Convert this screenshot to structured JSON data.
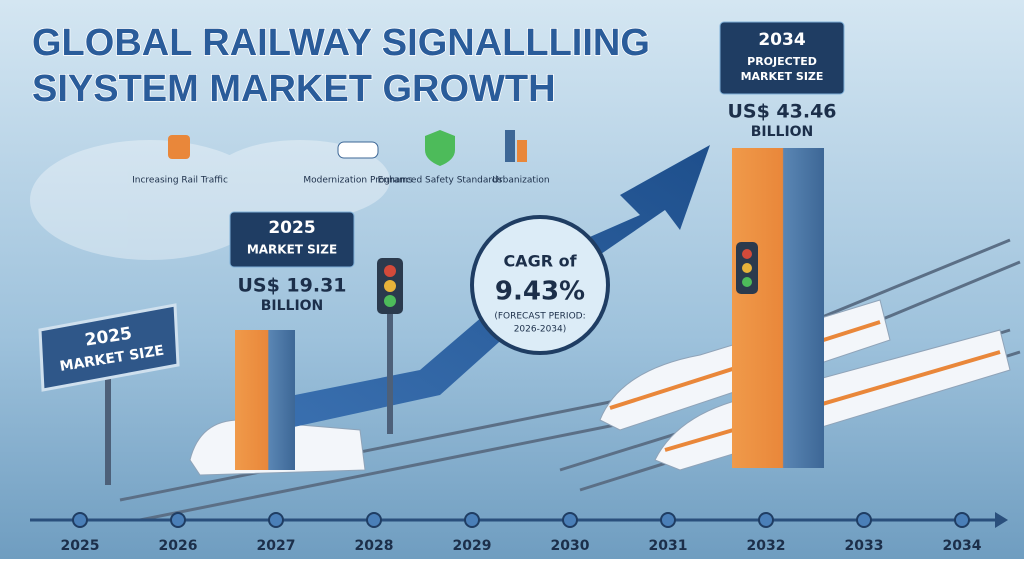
{
  "title": {
    "lines": [
      "GLOBAL RAILWAY SIGNALLLIING",
      "SIYSTEM MARKET GROWTH"
    ]
  },
  "drivers": [
    "Increasing Rail Traffic",
    "Modernization Programs",
    "Enhanced Safety Standards",
    "Urbanization"
  ],
  "sign": {
    "lines": [
      "2025",
      "MARKET SIZE"
    ]
  },
  "start": {
    "year": "2025",
    "label": "MARKET SIZE",
    "value": "US$ 19.31",
    "unit": "BILLION"
  },
  "end": {
    "year": "2034",
    "label_lines": [
      "PROJECTED",
      "MARKET SIZE"
    ],
    "value": "US$ 43.46",
    "unit": "BILLION"
  },
  "cagr": {
    "label": "CAGR of",
    "value": "9.43%",
    "period_lines": [
      "(FORECAST PERIOD:",
      "2026-2034)"
    ]
  },
  "timeline": [
    "2025",
    "2026",
    "2027",
    "2028",
    "2029",
    "2030",
    "2031",
    "2032",
    "2033",
    "2034"
  ]
}
